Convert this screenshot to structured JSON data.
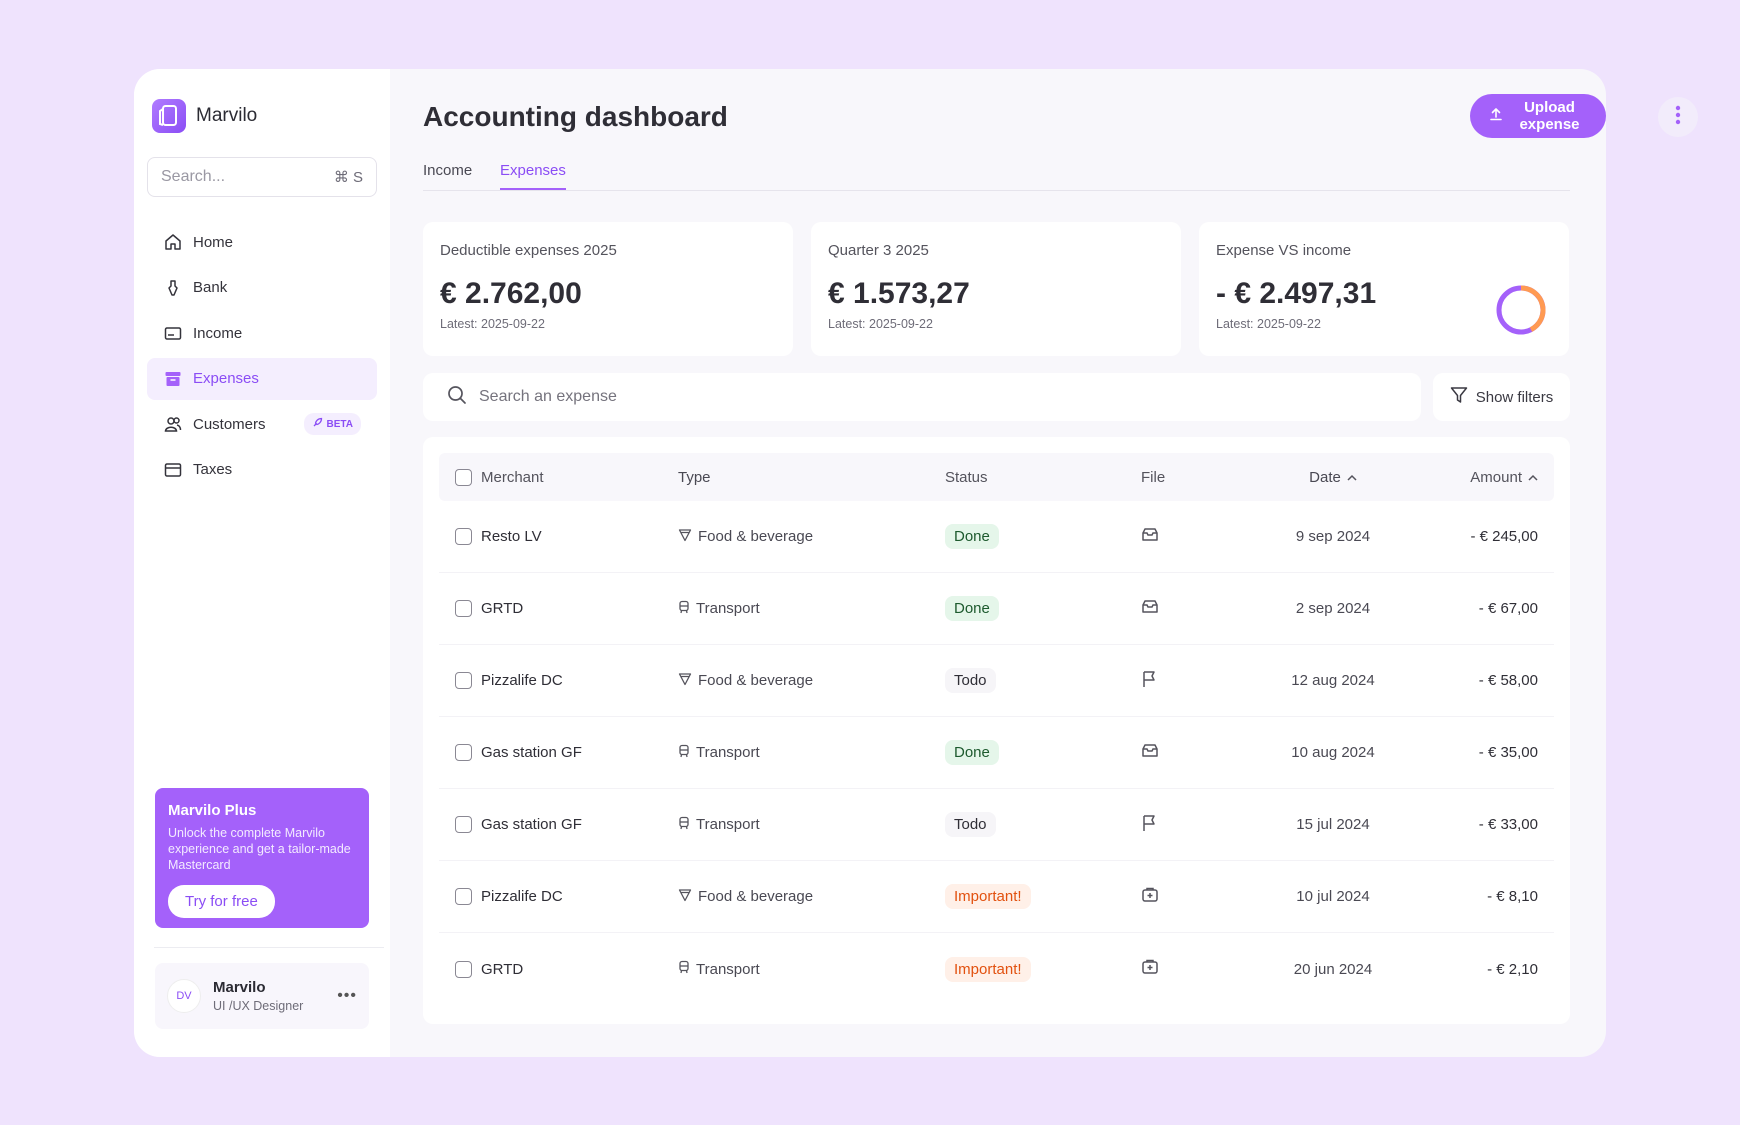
{
  "app": {
    "name": "Marvilo"
  },
  "sidebar": {
    "search_placeholder": "Search...",
    "search_shortcut": "⌘ S",
    "items": [
      {
        "label": "Home",
        "icon": "home-icon"
      },
      {
        "label": "Bank",
        "icon": "bank-icon"
      },
      {
        "label": "Income",
        "icon": "income-icon"
      },
      {
        "label": "Expenses",
        "icon": "expenses-icon",
        "active": true
      },
      {
        "label": "Customers",
        "icon": "customers-icon",
        "badge": "BETA"
      },
      {
        "label": "Taxes",
        "icon": "taxes-icon"
      }
    ],
    "promo": {
      "title": "Marvilo Plus",
      "text": "Unlock the complete Marvilo experience and get a tailor-made Mastercard",
      "button": "Try for free"
    },
    "profile": {
      "initials": "DV",
      "name": "Marvilo",
      "role": "UI /UX Designer"
    }
  },
  "header": {
    "title": "Accounting dashboard",
    "upload_label": "Upload expense"
  },
  "tabs": [
    {
      "label": "Income"
    },
    {
      "label": "Expenses",
      "active": true
    }
  ],
  "cards": [
    {
      "label": "Deductible expenses 2025",
      "value": "€ 2.762,00",
      "sub": "Latest: 2025-09-22"
    },
    {
      "label": "Quarter 3 2025",
      "value": "€ 1.573,27",
      "sub": "Latest: 2025-09-22"
    },
    {
      "label": "Expense VS income",
      "value": "- € 2.497,31",
      "sub": "Latest: 2025-09-22"
    }
  ],
  "expense_search": {
    "placeholder": "Search an expense"
  },
  "filters_label": "Show filters",
  "table": {
    "headers": {
      "merchant": "Merchant",
      "type": "Type",
      "status": "Status",
      "file": "File",
      "date": "Date",
      "amount": "Amount"
    },
    "rows": [
      {
        "merchant": "Resto LV",
        "type": "Food & beverage",
        "status": "Done",
        "file": "receipt-icon",
        "date": "9 sep 2024",
        "amount": "- € 245,00"
      },
      {
        "merchant": "GRTD",
        "type": "Transport",
        "status": "Done",
        "file": "receipt-icon",
        "date": "2 sep 2024",
        "amount": "- € 67,00"
      },
      {
        "merchant": "Pizzalife DC",
        "type": "Food & beverage",
        "status": "Todo",
        "file": "flag-icon",
        "date": "12 aug 2024",
        "amount": "- € 58,00"
      },
      {
        "merchant": "Gas station GF",
        "type": "Transport",
        "status": "Done",
        "file": "receipt-icon",
        "date": "10 aug 2024",
        "amount": "- € 35,00"
      },
      {
        "merchant": "Gas station GF",
        "type": "Transport",
        "status": "Todo",
        "file": "flag-icon",
        "date": "15 jul 2024",
        "amount": "- € 33,00"
      },
      {
        "merchant": "Pizzalife DC",
        "type": "Food & beverage",
        "status": "Important!",
        "file": "add-file-icon",
        "date": "10 jul 2024",
        "amount": "- € 8,10"
      },
      {
        "merchant": "GRTD",
        "type": "Transport",
        "status": "Important!",
        "file": "add-file-icon",
        "date": "20 jun 2024",
        "amount": "- € 2,10"
      }
    ]
  },
  "colors": {
    "accent": "#a461fa",
    "background": "#efe3fd",
    "done": "#e5f6ea",
    "important": "#e2510f",
    "donut_orange": "#ff9a52"
  }
}
